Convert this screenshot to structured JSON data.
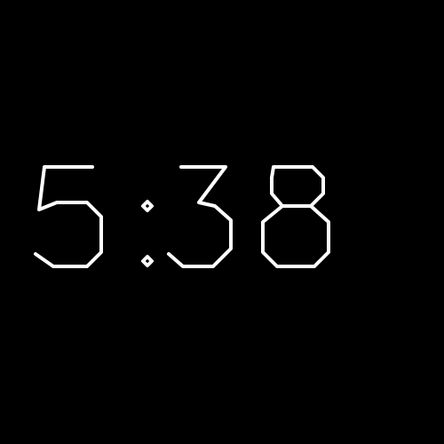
{
  "clock": {
    "time": "5:38",
    "hours": "5",
    "separator": ":",
    "minutes": "38",
    "digit_color": "#ffffff",
    "background_color": "#000000"
  }
}
